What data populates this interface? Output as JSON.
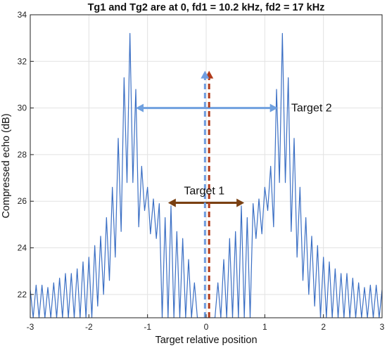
{
  "chart_data": {
    "type": "line",
    "title": "Tg1 and Tg2 are at 0, fd1 = 10.2 kHz, fd2 = 17 kHz",
    "xlabel": "Target relative position",
    "ylabel": "Compressed echo (dB)",
    "xlim": [
      -3,
      3
    ],
    "ylim": [
      21,
      34
    ],
    "xticks": [
      -3,
      -2,
      -1,
      0,
      1,
      2,
      3
    ],
    "yticks": [
      22,
      24,
      26,
      28,
      30,
      32,
      34
    ],
    "grid": true,
    "series": [
      {
        "color": "#3b6fc4",
        "x": [
          -3.0,
          -2.95,
          -2.9,
          -2.85,
          -2.8,
          -2.75,
          -2.7,
          -2.65,
          -2.6,
          -2.55,
          -2.5,
          -2.45,
          -2.4,
          -2.35,
          -2.3,
          -2.25,
          -2.2,
          -2.15,
          -2.1,
          -2.05,
          -2.0,
          -1.95,
          -1.9,
          -1.85,
          -1.8,
          -1.75,
          -1.7,
          -1.65,
          -1.6,
          -1.55,
          -1.5,
          -1.45,
          -1.4,
          -1.35,
          -1.3,
          -1.25,
          -1.2,
          -1.15,
          -1.1,
          -1.05,
          -1.0,
          -0.95,
          -0.9,
          -0.85,
          -0.8,
          -0.75,
          -0.7,
          -0.65,
          -0.6,
          -0.55,
          -0.5,
          -0.45,
          -0.4,
          -0.35,
          -0.3,
          -0.25,
          -0.2,
          -0.15,
          -0.1,
          -0.05,
          0.0,
          0.05,
          0.1,
          0.15,
          0.2,
          0.25,
          0.3,
          0.35,
          0.4,
          0.45,
          0.5,
          0.55,
          0.6,
          0.65,
          0.7,
          0.75,
          0.8,
          0.85,
          0.9,
          0.95,
          1.0,
          1.05,
          1.1,
          1.15,
          1.2,
          1.25,
          1.3,
          1.35,
          1.4,
          1.45,
          1.5,
          1.55,
          1.6,
          1.65,
          1.7,
          1.75,
          1.8,
          1.85,
          1.9,
          1.95,
          2.0,
          2.05,
          2.1,
          2.15,
          2.2,
          2.25,
          2.3,
          2.35,
          2.4,
          2.45,
          2.5,
          2.55,
          2.6,
          2.65,
          2.7,
          2.75,
          2.8,
          2.85,
          2.9,
          2.95,
          3.0
        ],
        "y": [
          22.2,
          21.0,
          22.4,
          21.0,
          22.4,
          21.0,
          22.3,
          21.0,
          22.5,
          21.0,
          22.7,
          21.0,
          22.9,
          21.0,
          22.9,
          21.0,
          23.1,
          21.0,
          23.4,
          21.0,
          23.6,
          21.0,
          24.1,
          21.5,
          24.5,
          22.0,
          25.3,
          22.6,
          26.6,
          23.6,
          28.7,
          24.7,
          31.3,
          26.8,
          33.2,
          26.8,
          30.8,
          24.9,
          27.5,
          25.6,
          26.6,
          24.6,
          26.1,
          24.4,
          25.9,
          21.0,
          25.3,
          21.0,
          25.8,
          21.0,
          24.7,
          21.0,
          24.4,
          21.0,
          23.5,
          21.0,
          22.5,
          21.0,
          21.0,
          21.0,
          21.0,
          21.0,
          21.0,
          21.0,
          22.5,
          21.0,
          23.5,
          21.0,
          24.4,
          21.0,
          24.7,
          21.0,
          25.8,
          21.0,
          25.3,
          21.0,
          25.9,
          24.4,
          26.1,
          24.6,
          26.6,
          25.6,
          27.5,
          24.9,
          30.8,
          26.8,
          33.2,
          26.8,
          31.3,
          24.7,
          28.7,
          23.6,
          26.6,
          22.6,
          25.3,
          22.0,
          24.5,
          21.5,
          24.1,
          21.0,
          23.6,
          21.0,
          23.4,
          21.0,
          23.1,
          21.0,
          22.9,
          21.0,
          22.9,
          21.0,
          22.7,
          21.0,
          22.5,
          21.0,
          22.3,
          21.0,
          22.4,
          21.0,
          22.4,
          21.0,
          22.2
        ]
      }
    ],
    "annotations": [
      {
        "text": "Target 2",
        "x": 1.45,
        "y": 29.85
      },
      {
        "text": "Target 1",
        "x": -0.38,
        "y": 26.3
      }
    ],
    "arrows": [
      {
        "name": "target-2-double-arrow",
        "color": "#6fa0df",
        "x1": -1.2,
        "y1": 30.0,
        "x2": 1.22,
        "y2": 30.0,
        "double": true
      },
      {
        "name": "target-1-double-arrow",
        "color": "#7a4012",
        "x1": -0.65,
        "y1": 25.93,
        "x2": 0.65,
        "y2": 25.93,
        "double": true
      },
      {
        "name": "target-1-dashed-arrow",
        "color": "#b03a1a",
        "x1": 0.05,
        "y1": 21.0,
        "x2": 0.05,
        "y2": 31.6,
        "dashed": true
      },
      {
        "name": "target-2-dashed-arrow",
        "color": "#6f9de0",
        "x1": -0.02,
        "y1": 21.0,
        "x2": -0.02,
        "y2": 31.6,
        "dashed": true
      }
    ]
  }
}
